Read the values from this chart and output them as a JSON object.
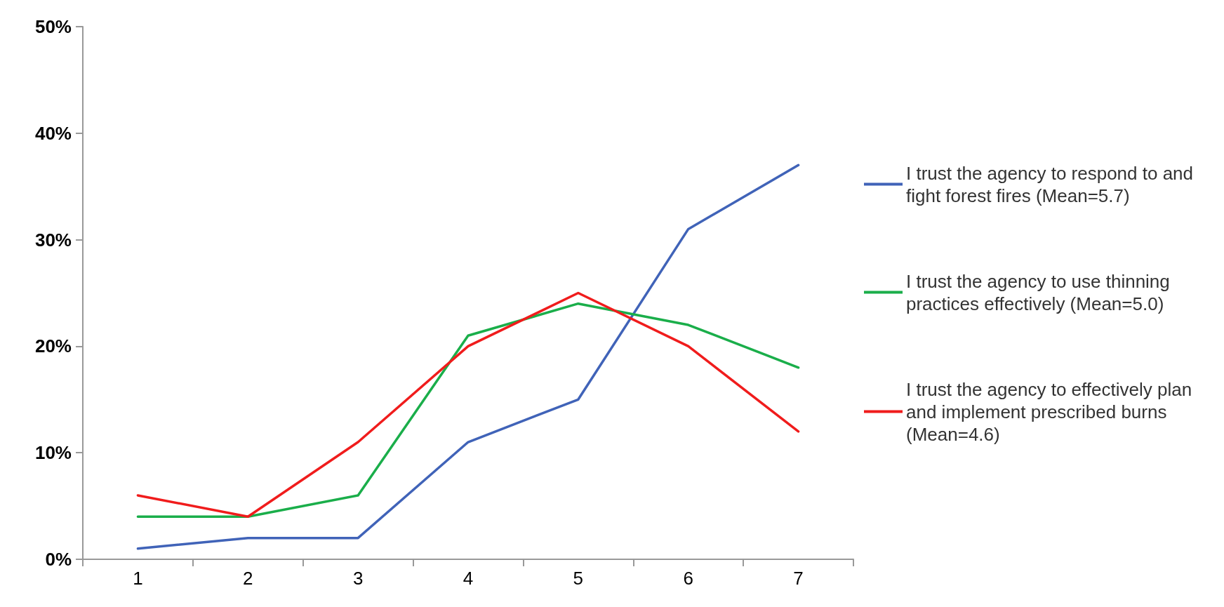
{
  "chart_data": {
    "type": "line",
    "categories": [
      "1",
      "2",
      "3",
      "4",
      "5",
      "6",
      "7"
    ],
    "series": [
      {
        "name": "I trust the agency to respond to and fight forest fires (Mean=5.7)",
        "color": "#4063b8",
        "values": [
          1,
          2,
          2,
          11,
          15,
          31,
          37
        ]
      },
      {
        "name": "I trust the agency to use thinning practices effectively (Mean=5.0)",
        "color": "#1aae4a",
        "values": [
          4,
          4,
          6,
          21,
          24,
          22,
          18
        ]
      },
      {
        "name": "I trust the agency to effectively plan and implement prescribed burns (Mean=4.6)",
        "color": "#f01c1c",
        "values": [
          6,
          4,
          11,
          20,
          25,
          20,
          12
        ]
      }
    ],
    "ylim": [
      0,
      50
    ],
    "yticks": [
      {
        "value": 0,
        "label": "0%"
      },
      {
        "value": 10,
        "label": "10%"
      },
      {
        "value": 20,
        "label": "20%"
      },
      {
        "value": 30,
        "label": "30%"
      },
      {
        "value": 40,
        "label": "40%"
      },
      {
        "value": 50,
        "label": "50%"
      }
    ],
    "grid": false,
    "legend": "right",
    "marker": "none",
    "line_style": "solid"
  }
}
